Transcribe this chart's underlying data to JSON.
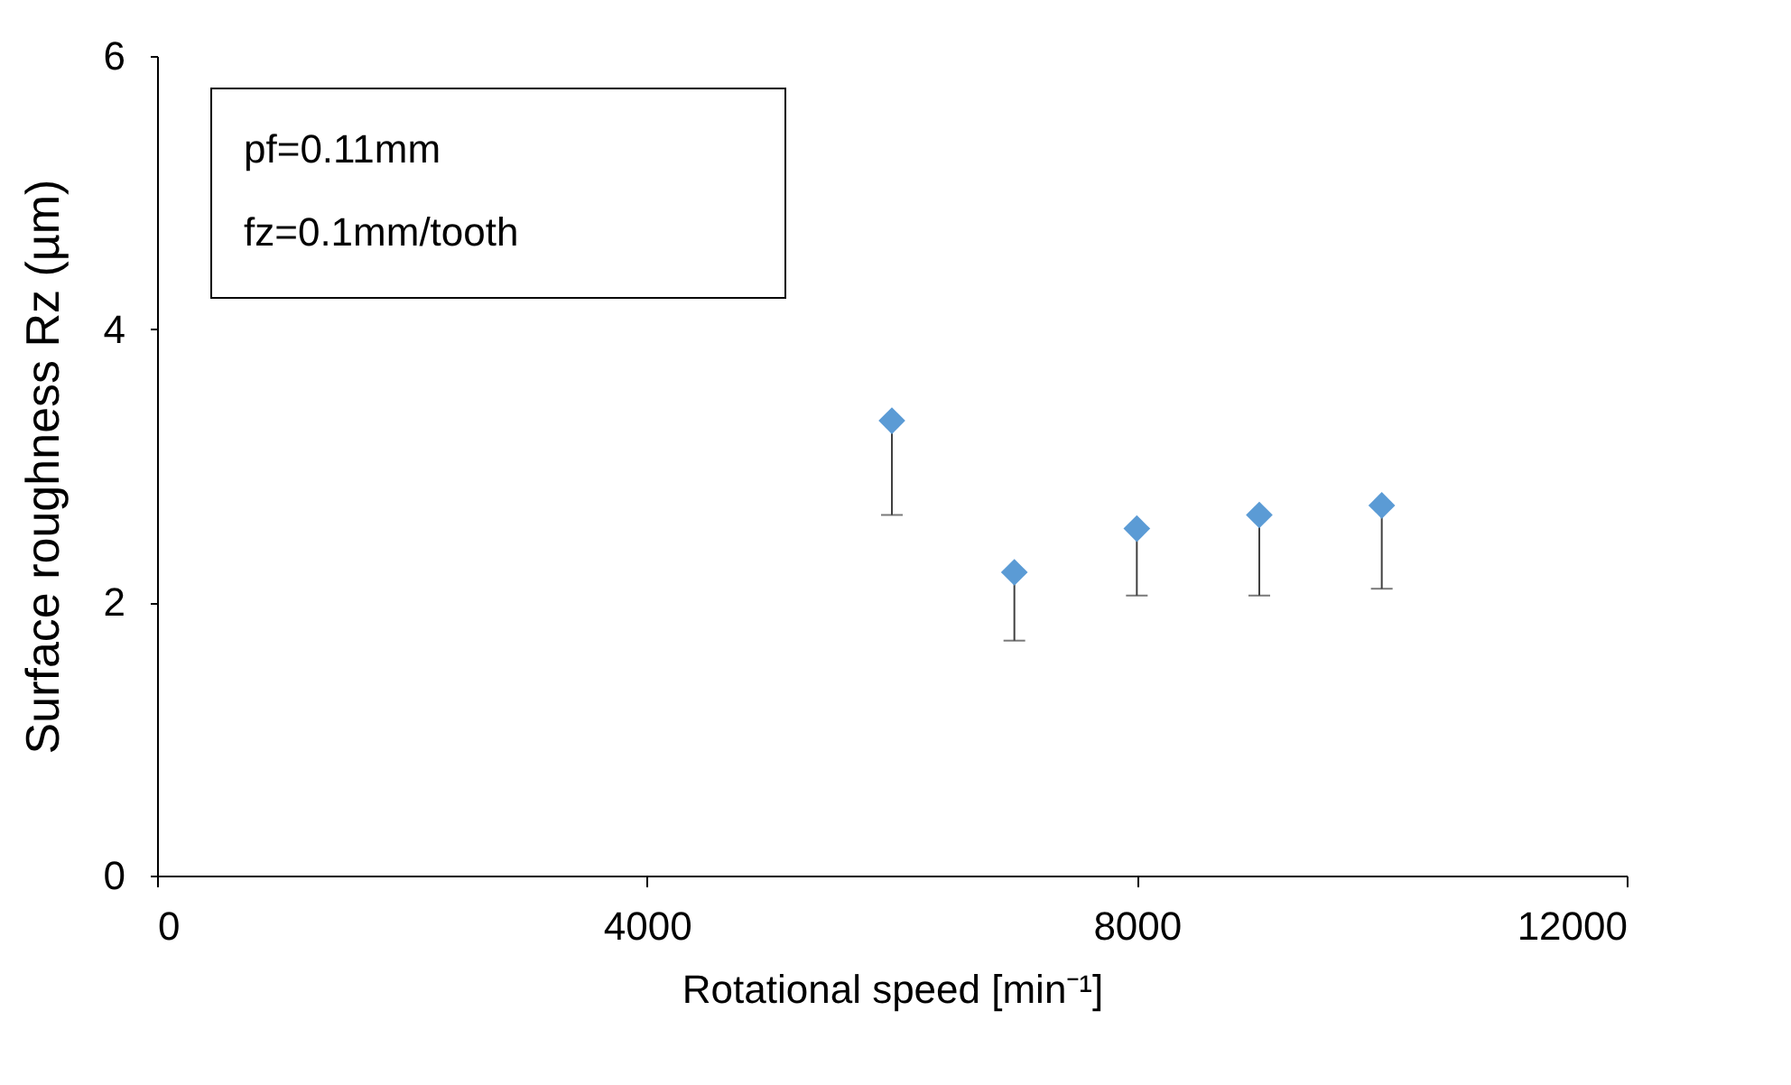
{
  "chart_data": {
    "type": "scatter",
    "xlabel": "Rotational speed [min⁻¹]",
    "ylabel": "Surface roughness Rz (µm)",
    "x": [
      6000,
      7000,
      8000,
      9000,
      10000
    ],
    "series": [
      {
        "color": "#5b9bd5",
        "values": [
          3.33,
          2.22,
          2.54,
          2.64,
          2.71
        ],
        "errors": [
          [
            2.64,
            3.33
          ],
          [
            1.72,
            2.22
          ],
          [
            2.05,
            2.54
          ],
          [
            2.05,
            2.64
          ],
          [
            2.1,
            2.71
          ]
        ]
      }
    ],
    "xlim": [
      0,
      12000
    ],
    "xticks": [
      0,
      4000,
      8000,
      12000
    ],
    "ylim": [
      0,
      6
    ],
    "yticks": [
      0,
      2,
      4,
      6
    ],
    "annotations": [
      "pf=0.11mm",
      "fz=0.1mm/tooth"
    ],
    "marker": "diamond",
    "grid": false
  }
}
